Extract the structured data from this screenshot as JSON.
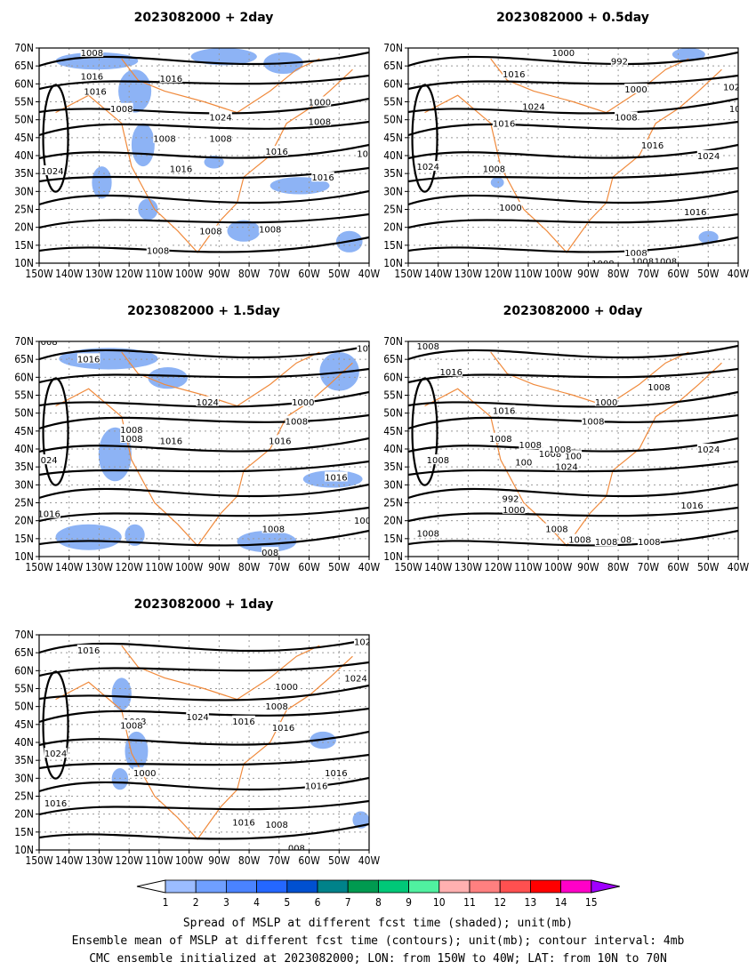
{
  "figure": {
    "caption_lines": [
      "Spread of MSLP at different fcst time (shaded); unit(mb)",
      "Ensemble mean of MSLP at different fcst time (contours); unit(mb); contour interval: 4mb",
      "CMC ensemble initialized at 2023082000; LON: from 150W to 40W; LAT: from 10N to 70N"
    ],
    "colorbar": {
      "labels": [
        "1",
        "2",
        "3",
        "4",
        "5",
        "6",
        "7",
        "8",
        "9",
        "10",
        "11",
        "12",
        "13",
        "14",
        "15"
      ],
      "colors": [
        "#9bbcff",
        "#6f9fff",
        "#4a83ff",
        "#2467ff",
        "#0050d0",
        "#00828a",
        "#009a50",
        "#00c878",
        "#50f0a0",
        "#ffb0b0",
        "#ff8080",
        "#ff5050",
        "#ff0000",
        "#ff00c8",
        "#a000ff"
      ]
    },
    "x_ticks": [
      "150W",
      "140W",
      "130W",
      "120W",
      "110W",
      "100W",
      "90W",
      "80W",
      "70W",
      "60W",
      "50W",
      "40W"
    ],
    "y_ticks": [
      "70N",
      "65N",
      "60N",
      "55N",
      "50N",
      "45N",
      "40N",
      "35N",
      "30N",
      "25N",
      "20N",
      "15N",
      "10N"
    ],
    "colors": {
      "contour": "#000000",
      "coast": "#f08a3c",
      "shade": "#8db3f5",
      "grid": "#999999"
    }
  },
  "chart_data": [
    {
      "type": "heatmap",
      "title": "2023082000  +  2day",
      "contour_labels": [
        "1008",
        "1016",
        "1008",
        "1016",
        "1008",
        "1024",
        "1000",
        "1008",
        "1016",
        "1008",
        "1016",
        "1016",
        "1008",
        "1008",
        "1008",
        "1024",
        "1016",
        "10"
      ]
    },
    {
      "type": "heatmap",
      "title": "2023082000  +  0.5day",
      "contour_labels": [
        "1000",
        "992",
        "1016",
        "1000",
        "1024",
        "1008",
        "1016",
        "1016",
        "1024",
        "1008",
        "1024",
        "1000",
        "1016",
        "1008",
        "1008",
        "1008",
        "1008",
        "102",
        "10"
      ]
    },
    {
      "type": "heatmap",
      "title": "2023082000  +  1.5day",
      "contour_labels": [
        "008",
        "1016",
        "1024",
        "1000",
        "1008",
        "1008",
        "1016",
        "1008",
        "1016",
        "024",
        "1016",
        "1016",
        "1008",
        "008",
        "100",
        "10"
      ]
    },
    {
      "type": "heatmap",
      "title": "2023082000  +  0day",
      "contour_labels": [
        "1008",
        "1016",
        "1000",
        "1008",
        "1016",
        "1008",
        "1008",
        "1024",
        "100",
        "1008",
        "100",
        "1008",
        "1008",
        "1024",
        "1008",
        "992",
        "1000",
        "1008",
        "1016",
        "1008",
        "1008",
        "1008",
        "08",
        "1008"
      ]
    },
    {
      "type": "heatmap",
      "title": "2023082000  +  1day",
      "contour_labels": [
        "1016",
        "102",
        "1024",
        "1000",
        "1008",
        "1008",
        "1008",
        "1016",
        "1024",
        "1016",
        "1016",
        "1000",
        "1024",
        "1016",
        "1016",
        "1008",
        "008",
        "1016"
      ]
    }
  ]
}
